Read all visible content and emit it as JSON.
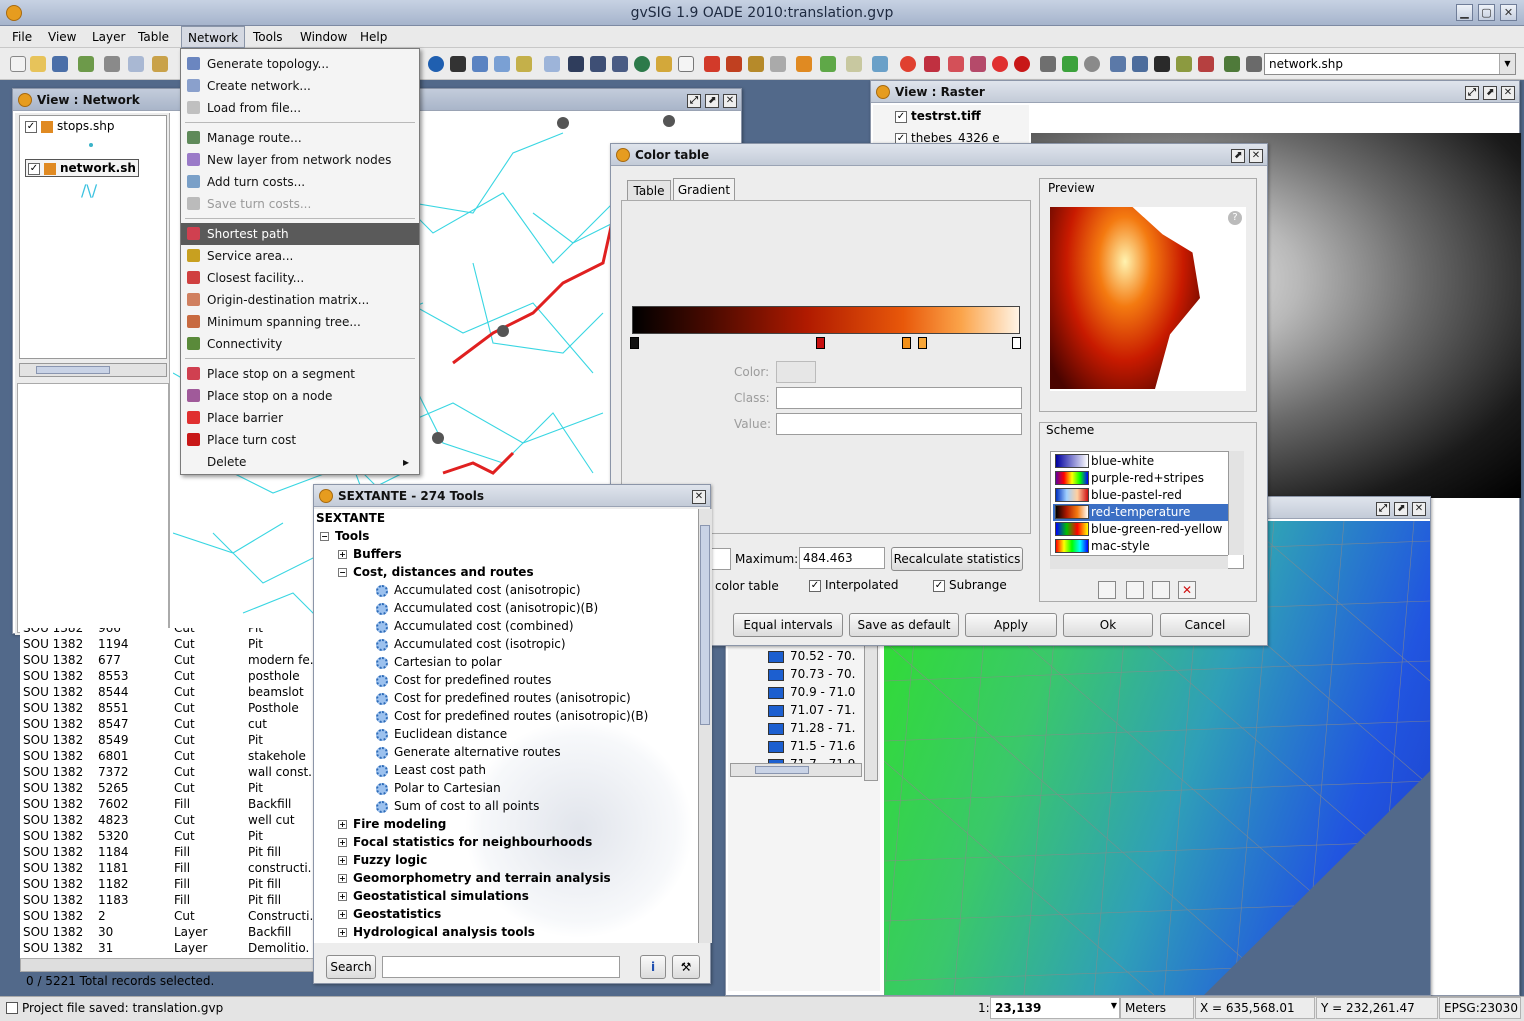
{
  "window": {
    "title": "gvSIG 1.9 OADE 2010:translation.gvp"
  },
  "menubar": {
    "items": [
      "File",
      "View",
      "Layer",
      "Table",
      "Network",
      "Tools",
      "Window",
      "Help"
    ]
  },
  "toolbar": {
    "layer_combo": "network.shp"
  },
  "network_menu": {
    "items": [
      {
        "label": "Generate topology...",
        "enabled": true
      },
      {
        "label": "Create network...",
        "enabled": true
      },
      {
        "label": "Load from file...",
        "enabled": true
      },
      {
        "label": "Manage route...",
        "enabled": true
      },
      {
        "label": "New layer from network nodes",
        "enabled": true
      },
      {
        "label": "Add turn costs...",
        "enabled": true
      },
      {
        "label": "Save turn costs...",
        "enabled": false
      },
      {
        "label": "Shortest path",
        "enabled": true,
        "highlighted": true
      },
      {
        "label": "Service area...",
        "enabled": true
      },
      {
        "label": "Closest facility...",
        "enabled": true
      },
      {
        "label": "Origin-destination matrix...",
        "enabled": true
      },
      {
        "label": "Minimum spanning tree...",
        "enabled": true
      },
      {
        "label": "Connectivity",
        "enabled": true
      },
      {
        "label": "Place stop on a segment",
        "enabled": true
      },
      {
        "label": "Place stop on a node",
        "enabled": true
      },
      {
        "label": "Place barrier",
        "enabled": true
      },
      {
        "label": "Place turn cost",
        "enabled": true
      },
      {
        "label": "Delete",
        "enabled": true,
        "submenu": true
      }
    ]
  },
  "view_network": {
    "title": "View : Network",
    "layers": [
      "stops.shp",
      "network.sh"
    ]
  },
  "view_raster": {
    "title": "View : Raster",
    "layers": [
      "testrst.tiff",
      "thebes_4326 e"
    ],
    "legend": [
      "70.52 - 70.",
      "70.73 - 70.",
      "70.9 - 71.0",
      "71.07 - 71.",
      "71.28 - 71.",
      "71.5 - 71.6",
      "71.7 - 71.9"
    ]
  },
  "color_table": {
    "title": "Color table",
    "tabs": [
      "Table",
      "Gradient"
    ],
    "active_tab": "Gradient",
    "color_label": "Color:",
    "class_label": "Class:",
    "value_label": "Value:",
    "maximum_label": "Maximum:",
    "maximum_value": "484.463",
    "recalc_button": "Recalculate statistics",
    "color_table_check": "color table",
    "interpolated_check": "Interpolated",
    "subrange_check": "Subrange",
    "preview_label": "Preview",
    "scheme_label": "Scheme",
    "schemes": [
      "blue-white",
      "purple-red+stripes",
      "blue-pastel-red",
      "red-temperature",
      "blue-green-red-yellow",
      "mac-style"
    ],
    "selected_scheme": "red-temperature",
    "buttons": [
      "Equal intervals",
      "Save as default",
      "Apply",
      "Ok",
      "Cancel"
    ]
  },
  "sextante": {
    "title": "SEXTANTE - 274 Tools",
    "root": "SEXTANTE",
    "tools_label": "Tools",
    "groups_before": [
      "Buffers"
    ],
    "open_group": "Cost, distances and routes",
    "open_group_items": [
      "Accumulated cost (anisotropic)",
      "Accumulated cost (anisotropic)(B)",
      "Accumulated cost (combined)",
      "Accumulated cost (isotropic)",
      "Cartesian to polar",
      "Cost for predefined routes",
      "Cost for predefined routes (anisotropic)",
      "Cost for predefined routes (anisotropic)(B)",
      "Euclidean distance",
      "Generate alternative routes",
      "Least cost path",
      "Polar to Cartesian",
      "Sum of cost to all points"
    ],
    "groups_after": [
      "Fire modeling",
      "Focal statistics for neighbourhoods",
      "Fuzzy logic",
      "Geomorphometry and terrain analysis",
      "Geostatistical simulations",
      "Geostatistics",
      "Hydrological analysis tools"
    ],
    "search_button": "Search",
    "search_value": ""
  },
  "attribute_table": {
    "rows": [
      [
        "SOU 1382",
        "966",
        "Cut",
        "Pit"
      ],
      [
        "SOU 1382",
        "1194",
        "Cut",
        "Pit"
      ],
      [
        "SOU 1382",
        "677",
        "Cut",
        "modern fe."
      ],
      [
        "SOU 1382",
        "8553",
        "Cut",
        "posthole"
      ],
      [
        "SOU 1382",
        "8544",
        "Cut",
        "beamslot"
      ],
      [
        "SOU 1382",
        "8551",
        "Cut",
        "Posthole"
      ],
      [
        "SOU 1382",
        "8547",
        "Cut",
        "cut"
      ],
      [
        "SOU 1382",
        "8549",
        "Cut",
        "Pit"
      ],
      [
        "SOU 1382",
        "6801",
        "Cut",
        "stakehole"
      ],
      [
        "SOU 1382",
        "7372",
        "Cut",
        "wall const."
      ],
      [
        "SOU 1382",
        "5265",
        "Cut",
        "Pit"
      ],
      [
        "SOU 1382",
        "7602",
        "Fill",
        "Backfill"
      ],
      [
        "SOU 1382",
        "4823",
        "Cut",
        "well cut"
      ],
      [
        "SOU 1382",
        "5320",
        "Cut",
        "Pit"
      ],
      [
        "SOU 1382",
        "1184",
        "Fill",
        "Pit fill"
      ],
      [
        "SOU 1382",
        "1181",
        "Fill",
        "constructi."
      ],
      [
        "SOU 1382",
        "1182",
        "Fill",
        "Pit fill"
      ],
      [
        "SOU 1382",
        "1183",
        "Fill",
        "Pit fill"
      ],
      [
        "SOU 1382",
        "2",
        "Cut",
        "Constructi."
      ],
      [
        "SOU 1382",
        "30",
        "Layer",
        "Backfill"
      ],
      [
        "SOU 1382",
        "31",
        "Layer",
        "Demolitio."
      ]
    ],
    "records": "0 / 5221 Total records selected."
  },
  "statusbar": {
    "message": "Project file saved: translation.gvp",
    "scale_prefix": "1:",
    "scale": "23,139",
    "units": "Meters",
    "x": "X = 635,568.01",
    "y": "Y = 232,261.47",
    "epsg": "EPSG:23030"
  }
}
